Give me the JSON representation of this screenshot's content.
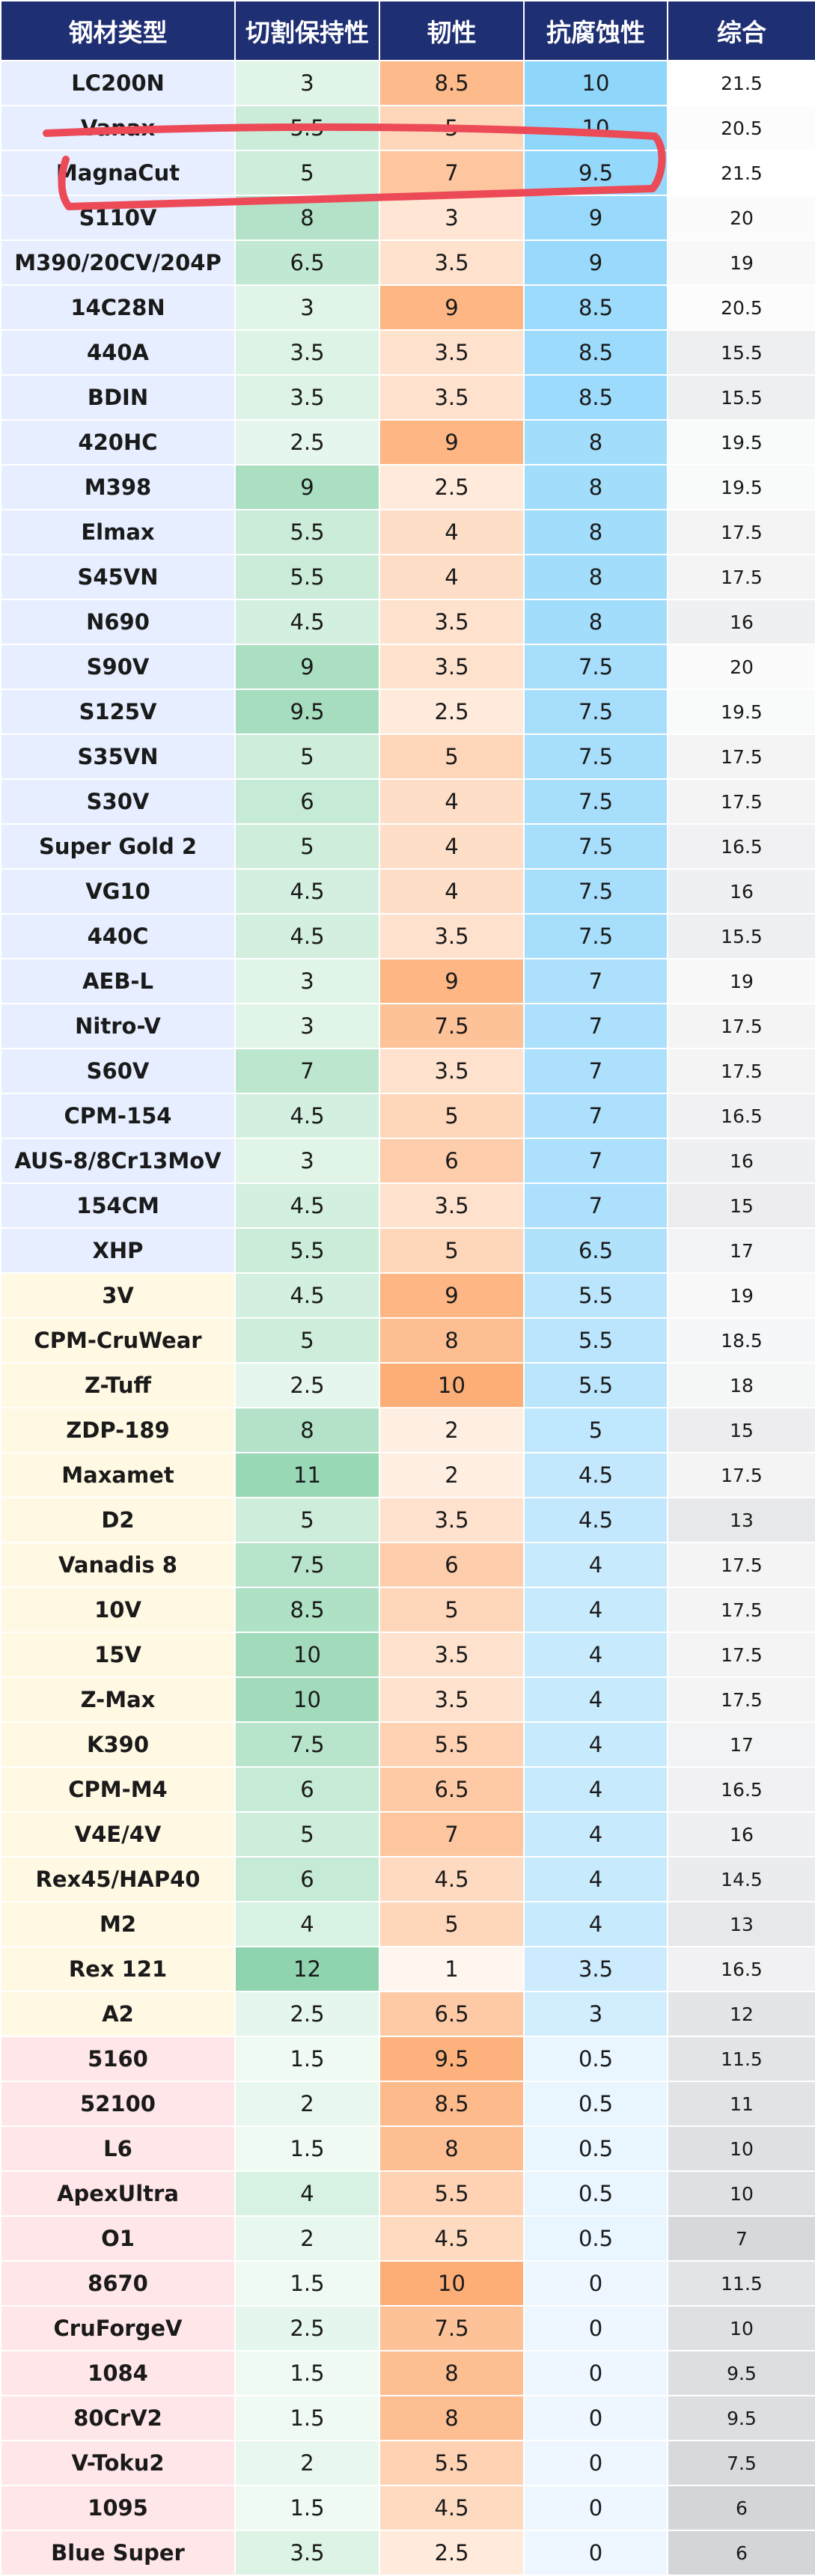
{
  "headers": [
    "钢材类型",
    "切割保持性",
    "韧性",
    "抗腐蚀性",
    "综合"
  ],
  "rows": [
    {
      "name": "LC200N",
      "edge": "3",
      "tough": "8.5",
      "corr": "10",
      "total": "21.5",
      "group": "blue"
    },
    {
      "name": "Vanax",
      "edge": "5.5",
      "tough": "5",
      "corr": "10",
      "total": "20.5",
      "group": "blue"
    },
    {
      "name": "MagnaCut",
      "edge": "5",
      "tough": "7",
      "corr": "9.5",
      "total": "21.5",
      "group": "blue"
    },
    {
      "name": "S110V",
      "edge": "8",
      "tough": "3",
      "corr": "9",
      "total": "20",
      "group": "blue"
    },
    {
      "name": "M390/20CV/204P",
      "edge": "6.5",
      "tough": "3.5",
      "corr": "9",
      "total": "19",
      "group": "blue"
    },
    {
      "name": "14C28N",
      "edge": "3",
      "tough": "9",
      "corr": "8.5",
      "total": "20.5",
      "group": "blue"
    },
    {
      "name": "440A",
      "edge": "3.5",
      "tough": "3.5",
      "corr": "8.5",
      "total": "15.5",
      "group": "blue"
    },
    {
      "name": "BDIN",
      "edge": "3.5",
      "tough": "3.5",
      "corr": "8.5",
      "total": "15.5",
      "group": "blue"
    },
    {
      "name": "420HC",
      "edge": "2.5",
      "tough": "9",
      "corr": "8",
      "total": "19.5",
      "group": "blue"
    },
    {
      "name": "M398",
      "edge": "9",
      "tough": "2.5",
      "corr": "8",
      "total": "19.5",
      "group": "blue"
    },
    {
      "name": "Elmax",
      "edge": "5.5",
      "tough": "4",
      "corr": "8",
      "total": "17.5",
      "group": "blue"
    },
    {
      "name": "S45VN",
      "edge": "5.5",
      "tough": "4",
      "corr": "8",
      "total": "17.5",
      "group": "blue"
    },
    {
      "name": "N690",
      "edge": "4.5",
      "tough": "3.5",
      "corr": "8",
      "total": "16",
      "group": "blue"
    },
    {
      "name": "S90V",
      "edge": "9",
      "tough": "3.5",
      "corr": "7.5",
      "total": "20",
      "group": "blue"
    },
    {
      "name": "S125V",
      "edge": "9.5",
      "tough": "2.5",
      "corr": "7.5",
      "total": "19.5",
      "group": "blue"
    },
    {
      "name": "S35VN",
      "edge": "5",
      "tough": "5",
      "corr": "7.5",
      "total": "17.5",
      "group": "blue"
    },
    {
      "name": "S30V",
      "edge": "6",
      "tough": "4",
      "corr": "7.5",
      "total": "17.5",
      "group": "blue"
    },
    {
      "name": "Super Gold 2",
      "edge": "5",
      "tough": "4",
      "corr": "7.5",
      "total": "16.5",
      "group": "blue"
    },
    {
      "name": "VG10",
      "edge": "4.5",
      "tough": "4",
      "corr": "7.5",
      "total": "16",
      "group": "blue"
    },
    {
      "name": "440C",
      "edge": "4.5",
      "tough": "3.5",
      "corr": "7.5",
      "total": "15.5",
      "group": "blue"
    },
    {
      "name": "AEB-L",
      "edge": "3",
      "tough": "9",
      "corr": "7",
      "total": "19",
      "group": "blue"
    },
    {
      "name": "Nitro-V",
      "edge": "3",
      "tough": "7.5",
      "corr": "7",
      "total": "17.5",
      "group": "blue"
    },
    {
      "name": "S60V",
      "edge": "7",
      "tough": "3.5",
      "corr": "7",
      "total": "17.5",
      "group": "blue"
    },
    {
      "name": "CPM-154",
      "edge": "4.5",
      "tough": "5",
      "corr": "7",
      "total": "16.5",
      "group": "blue"
    },
    {
      "name": "AUS-8/8Cr13MoV",
      "edge": "3",
      "tough": "6",
      "corr": "7",
      "total": "16",
      "group": "blue"
    },
    {
      "name": "154CM",
      "edge": "4.5",
      "tough": "3.5",
      "corr": "7",
      "total": "15",
      "group": "blue"
    },
    {
      "name": "XHP",
      "edge": "5.5",
      "tough": "5",
      "corr": "6.5",
      "total": "17",
      "group": "blue"
    },
    {
      "name": "3V",
      "edge": "4.5",
      "tough": "9",
      "corr": "5.5",
      "total": "19",
      "group": "yellow"
    },
    {
      "name": "CPM-CruWear",
      "edge": "5",
      "tough": "8",
      "corr": "5.5",
      "total": "18.5",
      "group": "yellow"
    },
    {
      "name": "Z-Tuff",
      "edge": "2.5",
      "tough": "10",
      "corr": "5.5",
      "total": "18",
      "group": "yellow"
    },
    {
      "name": "ZDP-189",
      "edge": "8",
      "tough": "2",
      "corr": "5",
      "total": "15",
      "group": "yellow"
    },
    {
      "name": "Maxamet",
      "edge": "11",
      "tough": "2",
      "corr": "4.5",
      "total": "17.5",
      "group": "yellow"
    },
    {
      "name": "D2",
      "edge": "5",
      "tough": "3.5",
      "corr": "4.5",
      "total": "13",
      "group": "yellow"
    },
    {
      "name": "Vanadis 8",
      "edge": "7.5",
      "tough": "6",
      "corr": "4",
      "total": "17.5",
      "group": "yellow"
    },
    {
      "name": "10V",
      "edge": "8.5",
      "tough": "5",
      "corr": "4",
      "total": "17.5",
      "group": "yellow"
    },
    {
      "name": "15V",
      "edge": "10",
      "tough": "3.5",
      "corr": "4",
      "total": "17.5",
      "group": "yellow"
    },
    {
      "name": "Z-Max",
      "edge": "10",
      "tough": "3.5",
      "corr": "4",
      "total": "17.5",
      "group": "yellow"
    },
    {
      "name": "K390",
      "edge": "7.5",
      "tough": "5.5",
      "corr": "4",
      "total": "17",
      "group": "yellow"
    },
    {
      "name": "CPM-M4",
      "edge": "6",
      "tough": "6.5",
      "corr": "4",
      "total": "16.5",
      "group": "yellow"
    },
    {
      "name": "V4E/4V",
      "edge": "5",
      "tough": "7",
      "corr": "4",
      "total": "16",
      "group": "yellow"
    },
    {
      "name": "Rex45/HAP40",
      "edge": "6",
      "tough": "4.5",
      "corr": "4",
      "total": "14.5",
      "group": "yellow"
    },
    {
      "name": "M2",
      "edge": "4",
      "tough": "5",
      "corr": "4",
      "total": "13",
      "group": "yellow"
    },
    {
      "name": "Rex 121",
      "edge": "12",
      "tough": "1",
      "corr": "3.5",
      "total": "16.5",
      "group": "yellow"
    },
    {
      "name": "A2",
      "edge": "2.5",
      "tough": "6.5",
      "corr": "3",
      "total": "12",
      "group": "yellow"
    },
    {
      "name": "5160",
      "edge": "1.5",
      "tough": "9.5",
      "corr": "0.5",
      "total": "11.5",
      "group": "pink"
    },
    {
      "name": "52100",
      "edge": "2",
      "tough": "8.5",
      "corr": "0.5",
      "total": "11",
      "group": "pink"
    },
    {
      "name": "L6",
      "edge": "1.5",
      "tough": "8",
      "corr": "0.5",
      "total": "10",
      "group": "pink"
    },
    {
      "name": "ApexUltra",
      "edge": "4",
      "tough": "5.5",
      "corr": "0.5",
      "total": "10",
      "group": "pink"
    },
    {
      "name": "O1",
      "edge": "2",
      "tough": "4.5",
      "corr": "0.5",
      "total": "7",
      "group": "pink"
    },
    {
      "name": "8670",
      "edge": "1.5",
      "tough": "10",
      "corr": "0",
      "total": "11.5",
      "group": "pink"
    },
    {
      "name": "CruForgeV",
      "edge": "2.5",
      "tough": "7.5",
      "corr": "0",
      "total": "10",
      "group": "pink"
    },
    {
      "name": "1084",
      "edge": "1.5",
      "tough": "8",
      "corr": "0",
      "total": "9.5",
      "group": "pink"
    },
    {
      "name": "80CrV2",
      "edge": "1.5",
      "tough": "8",
      "corr": "0",
      "total": "9.5",
      "group": "pink"
    },
    {
      "name": "V-Toku2",
      "edge": "2",
      "tough": "5.5",
      "corr": "0",
      "total": "7.5",
      "group": "pink"
    },
    {
      "name": "1095",
      "edge": "1.5",
      "tough": "4.5",
      "corr": "0",
      "total": "6",
      "group": "pink"
    },
    {
      "name": "Blue Super",
      "edge": "3.5",
      "tough": "2.5",
      "corr": "0",
      "total": "6",
      "group": "pink"
    }
  ],
  "colors": {
    "header_bg": "#1f2f73",
    "header_text": "#ffffff",
    "group_blue": "#e6eeff",
    "group_yellow": "#fff8e2",
    "group_pink": "#ffe6e8",
    "edge_scale": [
      "#eefaf2",
      "#8fd4ae"
    ],
    "tough_scale": [
      "#fff6ef",
      "#fdae77"
    ],
    "corr_scale": [
      "#eef7ff",
      "#8fd6fb"
    ],
    "total_scale": [
      "#d3d5d9",
      "#ffffff"
    ],
    "highlight_stroke": "#ec4a57"
  },
  "highlight": {
    "row_name": "MagnaCut",
    "shape": "hand-drawn-ellipse"
  }
}
